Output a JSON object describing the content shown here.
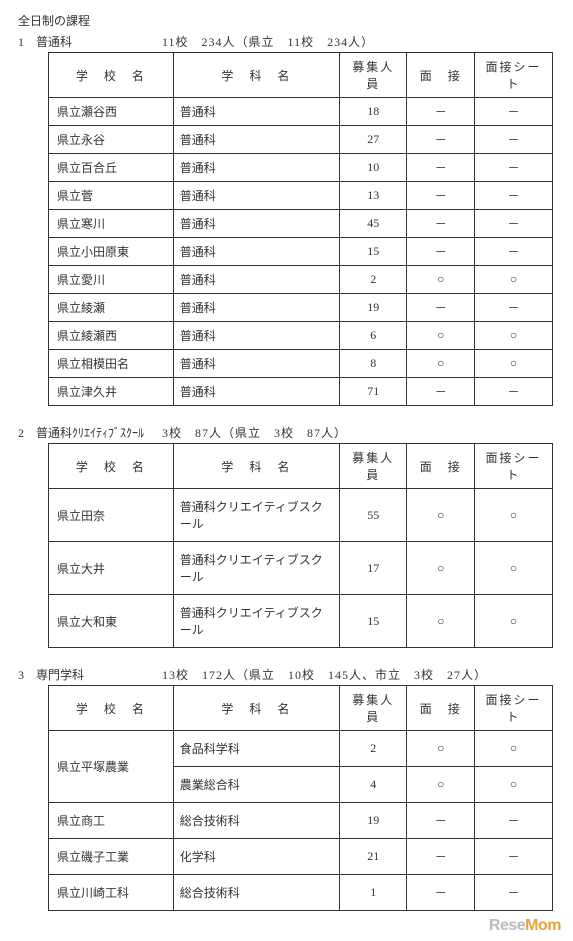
{
  "page_title": "全日制の課程",
  "columns": {
    "school": "学　校　名",
    "dept": "学　科　名",
    "count": "募集人員",
    "interview": "面　接",
    "sheet": "面接シート"
  },
  "marks": {
    "yes": "○",
    "no": "－"
  },
  "sections": [
    {
      "num": "1",
      "label": "普通科",
      "summary": "11校　234人（県立　11校　234人）",
      "tall": false,
      "rows": [
        {
          "school": "県立瀬谷西",
          "dept": "普通科",
          "count": "18",
          "interview": "no",
          "sheet": "no"
        },
        {
          "school": "県立永谷",
          "dept": "普通科",
          "count": "27",
          "interview": "no",
          "sheet": "no"
        },
        {
          "school": "県立百合丘",
          "dept": "普通科",
          "count": "10",
          "interview": "no",
          "sheet": "no"
        },
        {
          "school": "県立菅",
          "dept": "普通科",
          "count": "13",
          "interview": "no",
          "sheet": "no"
        },
        {
          "school": "県立寒川",
          "dept": "普通科",
          "count": "45",
          "interview": "no",
          "sheet": "no"
        },
        {
          "school": "県立小田原東",
          "dept": "普通科",
          "count": "15",
          "interview": "no",
          "sheet": "no"
        },
        {
          "school": "県立愛川",
          "dept": "普通科",
          "count": "2",
          "interview": "yes",
          "sheet": "yes"
        },
        {
          "school": "県立綾瀬",
          "dept": "普通科",
          "count": "19",
          "interview": "no",
          "sheet": "no"
        },
        {
          "school": "県立綾瀬西",
          "dept": "普通科",
          "count": "6",
          "interview": "yes",
          "sheet": "yes"
        },
        {
          "school": "県立相模田名",
          "dept": "普通科",
          "count": "8",
          "interview": "yes",
          "sheet": "yes"
        },
        {
          "school": "県立津久井",
          "dept": "普通科",
          "count": "71",
          "interview": "no",
          "sheet": "no"
        }
      ]
    },
    {
      "num": "2",
      "label": "普通科ｸﾘｴｲﾃｨﾌﾞｽｸｰﾙ",
      "summary": "3校　87人（県立　3校　87人）",
      "tall": true,
      "rows": [
        {
          "school": "県立田奈",
          "dept": "普通科クリエイティブスクール",
          "count": "55",
          "interview": "yes",
          "sheet": "yes"
        },
        {
          "school": "県立大井",
          "dept": "普通科クリエイティブスクール",
          "count": "17",
          "interview": "yes",
          "sheet": "yes"
        },
        {
          "school": "県立大和東",
          "dept": "普通科クリエイティブスクール",
          "count": "15",
          "interview": "yes",
          "sheet": "yes"
        }
      ]
    },
    {
      "num": "3",
      "label": "専門学科",
      "summary": "13校　172人（県立　10校　145人、市立　3校　27人）",
      "tall": true,
      "rows": [
        {
          "school": "県立平塚農業",
          "dept": "食品科学科",
          "count": "2",
          "interview": "yes",
          "sheet": "yes",
          "rowspan": 2
        },
        {
          "school": "",
          "dept": "農業総合科",
          "count": "4",
          "interview": "yes",
          "sheet": "yes",
          "merged": true
        },
        {
          "school": "県立商工",
          "dept": "総合技術科",
          "count": "19",
          "interview": "no",
          "sheet": "no"
        },
        {
          "school": "県立磯子工業",
          "dept": "化学科",
          "count": "21",
          "interview": "no",
          "sheet": "no"
        },
        {
          "school": "県立川崎工科",
          "dept": "総合技術科",
          "count": "1",
          "interview": "no",
          "sheet": "no"
        }
      ]
    }
  ],
  "watermark": {
    "a": "Rese",
    "b": "Mom"
  }
}
